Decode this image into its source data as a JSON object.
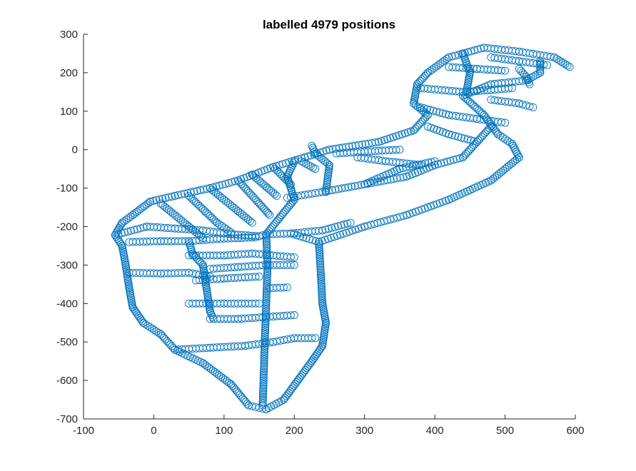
{
  "chart_data": {
    "type": "scatter",
    "title": "labelled 4979 positions",
    "xlabel": "",
    "ylabel": "",
    "xlim": [
      -100,
      600
    ],
    "ylim": [
      -700,
      300
    ],
    "xticks": [
      -100,
      0,
      100,
      200,
      300,
      400,
      500,
      600
    ],
    "yticks": [
      -700,
      -600,
      -500,
      -400,
      -300,
      -200,
      -100,
      0,
      100,
      200,
      300
    ],
    "grid": false,
    "marker": "circle-open",
    "color": "#0072BD",
    "series": [
      {
        "name": "",
        "paths": [
          [
            [
              -55,
              -222
            ],
            [
              -45,
              -190
            ],
            [
              -30,
              -170
            ],
            [
              -5,
              -135
            ],
            [
              30,
              -120
            ],
            [
              80,
              -100
            ],
            [
              120,
              -80
            ],
            [
              170,
              -45
            ],
            [
              215,
              -20
            ],
            [
              250,
              0
            ],
            [
              320,
              20
            ],
            [
              370,
              50
            ],
            [
              390,
              90
            ],
            [
              370,
              120
            ],
            [
              375,
              170
            ],
            [
              390,
              200
            ],
            [
              420,
              240
            ],
            [
              470,
              265
            ],
            [
              520,
              255
            ],
            [
              570,
              240
            ],
            [
              592,
              215
            ]
          ],
          [
            [
              -55,
              -222
            ],
            [
              -45,
              -250
            ],
            [
              -40,
              -300
            ],
            [
              -35,
              -360
            ],
            [
              -30,
              -410
            ],
            [
              -15,
              -450
            ],
            [
              10,
              -480
            ],
            [
              30,
              -520
            ],
            [
              70,
              -555
            ],
            [
              110,
              -610
            ],
            [
              135,
              -665
            ],
            [
              160,
              -675
            ],
            [
              185,
              -650
            ],
            [
              205,
              -600
            ],
            [
              225,
              -550
            ],
            [
              240,
              -510
            ],
            [
              245,
              -450
            ],
            [
              240,
              -400
            ],
            [
              238,
              -330
            ],
            [
              235,
              -240
            ]
          ],
          [
            [
              235,
              -240
            ],
            [
              300,
              -200
            ],
            [
              360,
              -170
            ],
            [
              420,
              -130
            ],
            [
              480,
              -80
            ],
            [
              520,
              -20
            ],
            [
              510,
              15
            ],
            [
              490,
              40
            ],
            [
              470,
              90
            ],
            [
              440,
              140
            ],
            [
              480,
              170
            ],
            [
              530,
              180
            ],
            [
              550,
              200
            ],
            [
              550,
              230
            ]
          ],
          [
            [
              -55,
              -222
            ],
            [
              -10,
              -200
            ],
            [
              30,
              -205
            ],
            [
              70,
              -210
            ],
            [
              110,
              -220
            ],
            [
              150,
              -225
            ],
            [
              160,
              -220
            ],
            [
              195,
              -218
            ],
            [
              235,
              -240
            ]
          ],
          [
            [
              160,
              -220
            ],
            [
              162,
              -300
            ],
            [
              160,
              -400
            ],
            [
              158,
              -500
            ],
            [
              155,
              -665
            ]
          ],
          [
            [
              160,
              -220
            ],
            [
              180,
              -175
            ],
            [
              200,
              -130
            ],
            [
              190,
              -70
            ],
            [
              200,
              -30
            ]
          ],
          [
            [
              195,
              -218
            ],
            [
              240,
              -210
            ],
            [
              280,
              -190
            ]
          ],
          [
            [
              190,
              -125
            ],
            [
              240,
              -110
            ],
            [
              300,
              -90
            ],
            [
              360,
              -70
            ],
            [
              400,
              -40
            ],
            [
              440,
              -20
            ],
            [
              460,
              20
            ],
            [
              480,
              60
            ]
          ],
          [
            [
              245,
              -110
            ],
            [
              250,
              -40
            ],
            [
              230,
              -10
            ],
            [
              225,
              10
            ]
          ],
          [
            [
              300,
              -90
            ],
            [
              350,
              -50
            ],
            [
              400,
              -30
            ]
          ],
          [
            [
              -35,
              -240
            ],
            [
              10,
              -238
            ],
            [
              50,
              -238
            ],
            [
              90,
              -232
            ],
            [
              120,
              -230
            ],
            [
              145,
              -228
            ]
          ],
          [
            [
              50,
              -238
            ],
            [
              55,
              -270
            ],
            [
              70,
              -300
            ],
            [
              75,
              -360
            ],
            [
              80,
              -420
            ],
            [
              85,
              -440
            ]
          ],
          [
            [
              -35,
              -320
            ],
            [
              10,
              -322
            ],
            [
              50,
              -320
            ],
            [
              80,
              -330
            ]
          ],
          [
            [
              50,
              -275
            ],
            [
              100,
              -275
            ],
            [
              140,
              -270
            ],
            [
              200,
              -280
            ]
          ],
          [
            [
              80,
              -310
            ],
            [
              120,
              -305
            ],
            [
              160,
              -300
            ],
            [
              200,
              -300
            ]
          ],
          [
            [
              60,
              -340
            ],
            [
              100,
              -335
            ],
            [
              150,
              -330
            ]
          ],
          [
            [
              80,
              -440
            ],
            [
              120,
              -440
            ],
            [
              160,
              -435
            ],
            [
              200,
              -430
            ]
          ],
          [
            [
              50,
              -400
            ],
            [
              100,
              -400
            ],
            [
              150,
              -400
            ]
          ],
          [
            [
              165,
              -360
            ],
            [
              190,
              -358
            ]
          ],
          [
            [
              30,
              -520
            ],
            [
              80,
              -515
            ],
            [
              130,
              -510
            ],
            [
              170,
              -500
            ],
            [
              200,
              -490
            ]
          ],
          [
            [
              200,
              -490
            ],
            [
              230,
              -490
            ]
          ],
          [
            [
              10,
              -140
            ],
            [
              50,
              -200
            ],
            [
              70,
              -230
            ]
          ],
          [
            [
              50,
              -120
            ],
            [
              90,
              -190
            ],
            [
              110,
              -215
            ]
          ],
          [
            [
              80,
              -100
            ],
            [
              120,
              -160
            ],
            [
              140,
              -190
            ]
          ],
          [
            [
              120,
              -80
            ],
            [
              150,
              -140
            ],
            [
              165,
              -170
            ]
          ],
          [
            [
              140,
              -65
            ],
            [
              175,
              -120
            ]
          ],
          [
            [
              170,
              -45
            ],
            [
              195,
              -90
            ]
          ],
          [
            [
              210,
              -30
            ],
            [
              230,
              -50
            ]
          ],
          [
            [
              380,
              110
            ],
            [
              420,
              90
            ],
            [
              460,
              80
            ],
            [
              500,
              70
            ]
          ],
          [
            [
              390,
              60
            ],
            [
              420,
              40
            ],
            [
              460,
              20
            ]
          ],
          [
            [
              260,
              -10
            ],
            [
              300,
              -5
            ],
            [
              350,
              0
            ]
          ],
          [
            [
              290,
              -20
            ],
            [
              330,
              -30
            ],
            [
              380,
              -40
            ]
          ],
          [
            [
              380,
              160
            ],
            [
              440,
              150
            ],
            [
              480,
              155
            ],
            [
              510,
              160
            ]
          ],
          [
            [
              420,
              215
            ],
            [
              460,
              210
            ],
            [
              500,
              205
            ]
          ],
          [
            [
              480,
              240
            ],
            [
              520,
              230
            ],
            [
              560,
              220
            ]
          ],
          [
            [
              440,
              250
            ],
            [
              450,
              200
            ],
            [
              445,
              150
            ]
          ],
          [
            [
              520,
              210
            ],
            [
              530,
              190
            ],
            [
              535,
              170
            ]
          ],
          [
            [
              480,
              130
            ],
            [
              520,
              120
            ],
            [
              540,
              110
            ]
          ]
        ]
      }
    ]
  }
}
